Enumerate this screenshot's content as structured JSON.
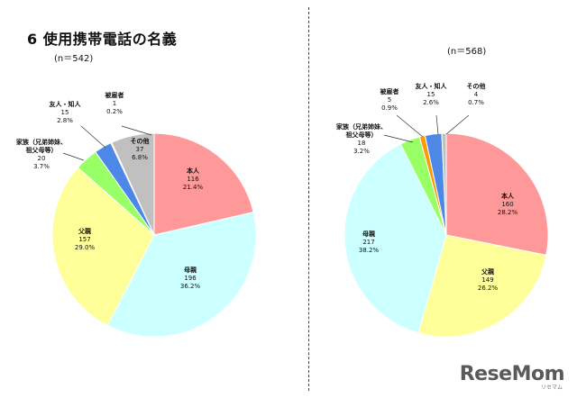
{
  "title": "6 使用携帯電話の名義",
  "logo": "ReseMom",
  "logo_sub": "リセマム",
  "chart_data": [
    {
      "type": "pie",
      "n_label": "(n＝542)",
      "start_angle_deg": 0,
      "slices": [
        {
          "label": "本人",
          "value": 116,
          "percent": "21.4%",
          "color": "#ff9999"
        },
        {
          "label": "母親",
          "value": 196,
          "percent": "36.2%",
          "color": "#ccffff"
        },
        {
          "label": "父親",
          "value": 157,
          "percent": "29.0%",
          "color": "#ffff99"
        },
        {
          "label": "家族（兄弟姉妹、祖父母等）",
          "value": 20,
          "percent": "3.7%",
          "color": "#99ff66"
        },
        {
          "label": "友人・知人",
          "value": 15,
          "percent": "2.8%",
          "color": "#4d88e8"
        },
        {
          "label": "被雇者",
          "value": 1,
          "percent": "0.2%",
          "color": "#ff9900"
        },
        {
          "label": "その他",
          "value": 37,
          "percent": "6.8%",
          "color": "#c0c0c0"
        }
      ]
    },
    {
      "type": "pie",
      "n_label": "(n＝568)",
      "start_angle_deg": 0,
      "slices": [
        {
          "label": "本人",
          "value": 160,
          "percent": "28.2%",
          "color": "#ff9999"
        },
        {
          "label": "父親",
          "value": 149,
          "percent": "26.2%",
          "color": "#ffff99"
        },
        {
          "label": "母親",
          "value": 217,
          "percent": "38.2%",
          "color": "#ccffff"
        },
        {
          "label": "家族（兄弟姉妹、祖父母等）",
          "value": 18,
          "percent": "3.2%",
          "color": "#99ff66"
        },
        {
          "label": "被雇者",
          "value": 5,
          "percent": "0.9%",
          "color": "#ff9900"
        },
        {
          "label": "友人・知人",
          "value": 15,
          "percent": "2.6%",
          "color": "#4d88e8"
        },
        {
          "label": "その他",
          "value": 4,
          "percent": "0.7%",
          "color": "#c0c0c0"
        }
      ]
    }
  ]
}
